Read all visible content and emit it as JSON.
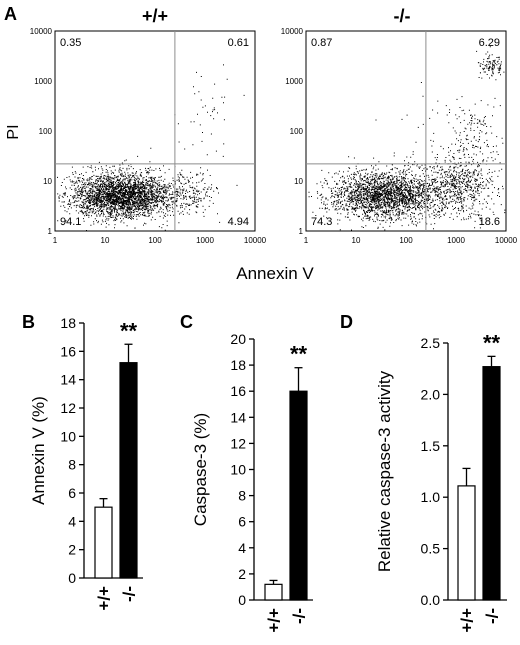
{
  "figure": {
    "panel_labels": [
      "A",
      "B",
      "C",
      "D"
    ]
  },
  "chart_data": [
    {
      "type": "scatter",
      "panel": "A",
      "title": "+/+",
      "xlabel": "Annexin V",
      "ylabel": "PI",
      "scale": "log",
      "xlim": [
        1,
        10000
      ],
      "ylim": [
        1,
        10000
      ],
      "x_ticks": [
        "1",
        "10",
        "100",
        "1000",
        "10000"
      ],
      "y_ticks": [
        "1",
        "10",
        "100",
        "1000",
        "10000"
      ],
      "gate": {
        "x": 250,
        "y": 22
      },
      "quadrants": {
        "upper_left": "0.35",
        "upper_right": "0.61",
        "lower_left": "94.1",
        "lower_right": "4.94"
      },
      "point_color": "#000000"
    },
    {
      "type": "scatter",
      "panel": "A",
      "title": "-/-",
      "xlabel": "Annexin V",
      "ylabel": "PI",
      "scale": "log",
      "xlim": [
        1,
        10000
      ],
      "ylim": [
        1,
        10000
      ],
      "x_ticks": [
        "1",
        "10",
        "100",
        "1000",
        "10000"
      ],
      "y_ticks": [
        "1",
        "10",
        "100",
        "1000",
        "10000"
      ],
      "gate": {
        "x": 250,
        "y": 22
      },
      "quadrants": {
        "upper_left": "0.87",
        "upper_right": "6.29",
        "lower_left": "74.3",
        "lower_right": "18.6"
      },
      "point_color": "#000000"
    },
    {
      "type": "bar",
      "panel": "B",
      "categories": [
        "+/+",
        "-/-"
      ],
      "values": [
        5.0,
        15.2
      ],
      "errors": [
        0.6,
        1.3
      ],
      "ylabel": "Annexin V (%)",
      "ylim": [
        0,
        18
      ],
      "y_ticks": [
        "0",
        "2",
        "4",
        "6",
        "8",
        "10",
        "12",
        "14",
        "16",
        "18"
      ],
      "significance": "**",
      "bar_fills": [
        "#ffffff",
        "#000000"
      ]
    },
    {
      "type": "bar",
      "panel": "C",
      "categories": [
        "+/+",
        "-/-"
      ],
      "values": [
        1.2,
        16.0
      ],
      "errors": [
        0.3,
        1.8
      ],
      "ylabel": "Caspase-3 (%)",
      "ylim": [
        0,
        20
      ],
      "y_ticks": [
        "0",
        "2",
        "4",
        "6",
        "8",
        "10",
        "12",
        "14",
        "16",
        "18",
        "20"
      ],
      "significance": "**",
      "bar_fills": [
        "#ffffff",
        "#000000"
      ]
    },
    {
      "type": "bar",
      "panel": "D",
      "categories": [
        "+/+",
        "-/-"
      ],
      "values": [
        1.11,
        2.27
      ],
      "errors": [
        0.17,
        0.1
      ],
      "ylabel": "Relative caspase-3 activity",
      "ylim": [
        0,
        2.5
      ],
      "y_ticks": [
        "0.0",
        "0.5",
        "1.0",
        "1.5",
        "2.0",
        "2.5"
      ],
      "significance": "**",
      "bar_fills": [
        "#ffffff",
        "#000000"
      ]
    }
  ]
}
